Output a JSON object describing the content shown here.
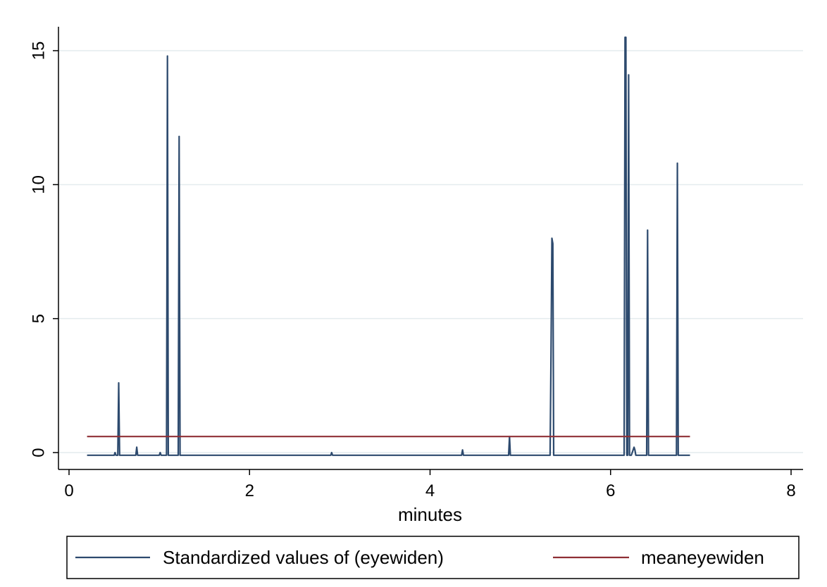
{
  "chart_data": {
    "type": "line",
    "title": "",
    "xlabel": "minutes",
    "ylabel": "",
    "xlim": [
      0,
      8
    ],
    "ylim": [
      0,
      15
    ],
    "x_ticks": [
      "0",
      "2",
      "4",
      "6",
      "8"
    ],
    "y_ticks": [
      "0",
      "5",
      "10",
      "15"
    ],
    "grid": "horizontal",
    "legend_position": "bottom",
    "series": [
      {
        "name": "Standardized values of (eyewiden)",
        "color": "#2d4a6e",
        "x": [
          0.2,
          0.5,
          0.51,
          0.52,
          0.54,
          0.55,
          0.56,
          0.57,
          0.74,
          0.75,
          0.76,
          1.0,
          1.01,
          1.02,
          1.08,
          1.09,
          1.1,
          1.21,
          1.22,
          1.23,
          2.9,
          2.91,
          2.92,
          4.35,
          4.36,
          4.37,
          4.87,
          4.88,
          4.89,
          5.33,
          5.34,
          5.35,
          5.36,
          5.37,
          6.15,
          6.16,
          6.17,
          6.18,
          6.19,
          6.2,
          6.21,
          6.22,
          6.23,
          6.26,
          6.27,
          6.28,
          6.4,
          6.41,
          6.42,
          6.73,
          6.74,
          6.75,
          6.88
        ],
        "y": [
          -0.1,
          -0.1,
          0.0,
          -0.1,
          -0.1,
          2.6,
          -0.1,
          -0.1,
          -0.1,
          0.2,
          -0.1,
          -0.1,
          0.0,
          -0.1,
          -0.1,
          14.8,
          -0.1,
          -0.1,
          11.8,
          -0.1,
          -0.1,
          0.0,
          -0.1,
          -0.1,
          0.1,
          -0.1,
          -0.1,
          0.6,
          -0.1,
          -0.1,
          3.6,
          8.0,
          7.8,
          -0.1,
          -0.1,
          15.5,
          15.5,
          -0.1,
          -0.1,
          14.1,
          -0.1,
          -0.1,
          -0.1,
          0.2,
          0.1,
          -0.1,
          -0.1,
          8.3,
          -0.1,
          -0.1,
          10.8,
          -0.1,
          -0.1
        ]
      },
      {
        "name": "meaneyewiden",
        "color": "#8f2f35",
        "x": [
          0.2,
          6.88
        ],
        "y": [
          0.6,
          0.6
        ]
      }
    ]
  }
}
